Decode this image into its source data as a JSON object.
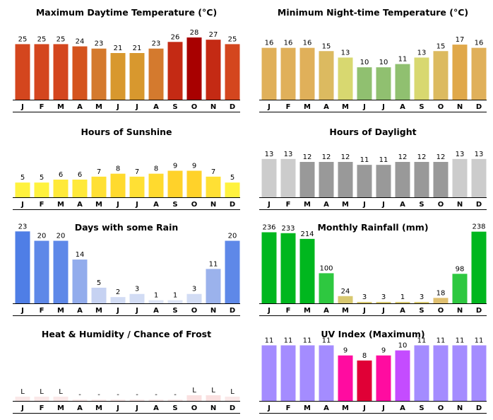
{
  "months": [
    "J",
    "F",
    "M",
    "A",
    "M",
    "J",
    "J",
    "A",
    "S",
    "O",
    "N",
    "D"
  ],
  "chart_data": [
    {
      "id": "max-temp",
      "type": "bar",
      "title": "Maximum Daytime Temperature (°C)",
      "categories": [
        "J",
        "F",
        "M",
        "A",
        "M",
        "J",
        "J",
        "A",
        "S",
        "O",
        "N",
        "D"
      ],
      "values": [
        25,
        25,
        25,
        24,
        23,
        21,
        21,
        23,
        26,
        28,
        27,
        25
      ],
      "labels": [
        "25",
        "25",
        "25",
        "24",
        "23",
        "21",
        "21",
        "23",
        "26",
        "28",
        "27",
        "25"
      ],
      "colors": [
        "#d4461e",
        "#d4461e",
        "#d4461e",
        "#d4541e",
        "#d47a2e",
        "#d8982e",
        "#d8982e",
        "#d47a2e",
        "#c42a14",
        "#a80000",
        "#c42a14",
        "#d4461e"
      ],
      "ylim": [
        0,
        35
      ]
    },
    {
      "id": "min-temp",
      "type": "bar",
      "title": "Minimum Night-time Temperature (°C)",
      "categories": [
        "J",
        "F",
        "M",
        "A",
        "M",
        "J",
        "J",
        "A",
        "S",
        "O",
        "N",
        "D"
      ],
      "values": [
        16,
        16,
        16,
        15,
        13,
        10,
        10,
        11,
        13,
        15,
        17,
        16
      ],
      "labels": [
        "16",
        "16",
        "16",
        "15",
        "13",
        "10",
        "10",
        "11",
        "13",
        "15",
        "17",
        "16"
      ],
      "colors": [
        "#e0b05a",
        "#e0b05a",
        "#e0b05a",
        "#dcba60",
        "#d8d870",
        "#90c070",
        "#90c070",
        "#90c070",
        "#d8d870",
        "#dcba60",
        "#e0a84a",
        "#e0b05a"
      ],
      "ylim": [
        0,
        24
      ]
    },
    {
      "id": "sunshine",
      "type": "bar",
      "title": "Hours of Sunshine",
      "categories": [
        "J",
        "F",
        "M",
        "A",
        "M",
        "J",
        "J",
        "A",
        "S",
        "O",
        "N",
        "D"
      ],
      "values": [
        5,
        5,
        6,
        6,
        7,
        8,
        7,
        8,
        9,
        9,
        7,
        5
      ],
      "labels": [
        "5",
        "5",
        "6",
        "6",
        "7",
        "8",
        "7",
        "8",
        "9",
        "9",
        "7",
        "5"
      ],
      "colors": [
        "#fff23e",
        "#fff23e",
        "#ffe93a",
        "#ffe93a",
        "#ffe034",
        "#ffda2e",
        "#ffe034",
        "#ffda2e",
        "#ffd22a",
        "#ffd22a",
        "#ffe034",
        "#fff23e"
      ],
      "ylim": [
        0,
        24
      ]
    },
    {
      "id": "daylight",
      "type": "bar",
      "title": "Hours of Daylight",
      "categories": [
        "J",
        "F",
        "M",
        "A",
        "M",
        "J",
        "J",
        "A",
        "S",
        "O",
        "N",
        "D"
      ],
      "values": [
        13,
        13,
        12,
        12,
        12,
        11,
        11,
        12,
        12,
        12,
        13,
        13
      ],
      "labels": [
        "13",
        "13",
        "12",
        "12",
        "12",
        "11",
        "11",
        "12",
        "12",
        "12",
        "13",
        "13"
      ],
      "colors": [
        "#cccccc",
        "#cccccc",
        "#999999",
        "#999999",
        "#999999",
        "#999999",
        "#999999",
        "#999999",
        "#999999",
        "#999999",
        "#cccccc",
        "#cccccc"
      ],
      "ylim": [
        0,
        24
      ]
    },
    {
      "id": "rain-days",
      "type": "bar",
      "title": "Days with some Rain",
      "categories": [
        "J",
        "F",
        "M",
        "A",
        "M",
        "J",
        "J",
        "A",
        "S",
        "O",
        "N",
        "D"
      ],
      "values": [
        23,
        20,
        20,
        14,
        5,
        2,
        3,
        1,
        1,
        3,
        11,
        20
      ],
      "labels": [
        "23",
        "20",
        "20",
        "14",
        "5",
        "2",
        "3",
        "1",
        "1",
        "3",
        "11",
        "20"
      ],
      "colors": [
        "#4f7ee6",
        "#5e88e8",
        "#5e88e8",
        "#92acec",
        "#c6d2f2",
        "#d2dcf4",
        "#d2dcf4",
        "#dde4f6",
        "#dde4f6",
        "#d2dcf4",
        "#9bb2ec",
        "#5e88e8"
      ],
      "ylim": [
        0,
        26
      ]
    },
    {
      "id": "rainfall",
      "type": "bar",
      "title": "Monthly Rainfall (mm)",
      "categories": [
        "J",
        "F",
        "M",
        "A",
        "M",
        "J",
        "J",
        "A",
        "S",
        "O",
        "N",
        "D"
      ],
      "values": [
        236,
        233,
        214,
        100,
        24,
        3,
        3,
        1,
        3,
        18,
        98,
        238
      ],
      "labels": [
        "236",
        "233",
        "214",
        "100",
        "24",
        "3",
        "3",
        "1",
        "3",
        "18",
        "98",
        "238"
      ],
      "colors": [
        "#00b71e",
        "#00b71e",
        "#00b71e",
        "#2ec840",
        "#d8c870",
        "#d8c870",
        "#d8c870",
        "#d8c870",
        "#d8c870",
        "#e0c070",
        "#2ec840",
        "#00b71e"
      ],
      "ylim": [
        0,
        270
      ]
    },
    {
      "id": "heat-frost",
      "type": "bar",
      "title": "Heat & Humidity / Chance of Frost",
      "categories": [
        "J",
        "F",
        "M",
        "A",
        "M",
        "J",
        "J",
        "A",
        "S",
        "O",
        "N",
        "D"
      ],
      "values": [
        1,
        1,
        1,
        0,
        0,
        0,
        0,
        0,
        0,
        2,
        2,
        1
      ],
      "labels": [
        "L",
        "L",
        "L",
        "-",
        "-",
        "-",
        "-",
        "-",
        "-",
        "L",
        "L",
        "L"
      ],
      "colors": [
        "#fae8e8",
        "#fae8e8",
        "#fae8e8",
        "#fae8e8",
        "#fae8e8",
        "#fae8e8",
        "#fae8e8",
        "#fae8e8",
        "#fae8e8",
        "#fae0e0",
        "#fae0e0",
        "#fae8e8"
      ],
      "ylim": [
        0,
        24
      ]
    },
    {
      "id": "uv-index",
      "type": "bar",
      "title": "UV Index (Maximum)",
      "categories": [
        "J",
        "F",
        "M",
        "A",
        "M",
        "J",
        "J",
        "A",
        "S",
        "O",
        "N",
        "D"
      ],
      "values": [
        11,
        11,
        11,
        11,
        9,
        8,
        9,
        10,
        11,
        11,
        11,
        11
      ],
      "labels": [
        "11",
        "11",
        "11",
        "11",
        "9",
        "8",
        "9",
        "10",
        "11",
        "11",
        "11",
        "11"
      ],
      "colors": [
        "#a48cff",
        "#a48cff",
        "#a48cff",
        "#a48cff",
        "#ff0ca0",
        "#e00036",
        "#ff0ca0",
        "#c44cff",
        "#a48cff",
        "#a48cff",
        "#a48cff",
        "#a48cff"
      ],
      "ylim": [
        0,
        14
      ]
    }
  ]
}
